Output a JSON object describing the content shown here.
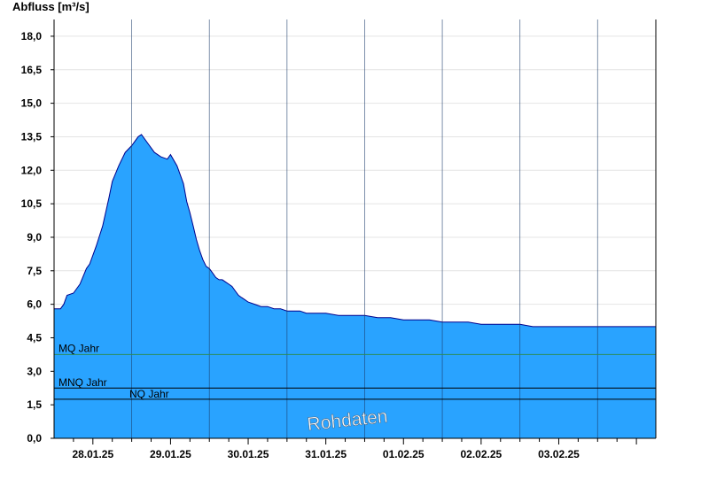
{
  "chart_data": {
    "type": "area",
    "ylabel": "Abfluss [m³/s]",
    "xlabel": "",
    "title": "",
    "ylim": [
      0,
      18.75
    ],
    "xlim": [
      "27.01.25 12:00",
      "04.02.25 06:00"
    ],
    "yticks": [
      "0,0",
      "1,5",
      "3,0",
      "4,5",
      "6,0",
      "7,5",
      "9,0",
      "10,5",
      "12,0",
      "13,5",
      "15,0",
      "16,5",
      "18,0"
    ],
    "ytick_values": [
      0,
      1.5,
      3,
      4.5,
      6,
      7.5,
      9,
      10.5,
      12,
      13.5,
      15,
      16.5,
      18
    ],
    "xticks": [
      "28.01.25",
      "29.01.25",
      "30.01.25",
      "31.01.25",
      "01.02.25",
      "02.02.25",
      "03.02.25"
    ],
    "grid": true,
    "fill_color": "#29a3ff",
    "line_color": "#00008b",
    "series": [
      {
        "name": "",
        "x_hours": [
          0,
          2,
          3,
          4,
          6,
          8,
          10,
          11,
          13,
          15,
          17,
          18,
          20,
          22,
          24,
          26,
          27,
          29,
          31,
          33,
          35,
          36,
          38,
          40,
          41,
          42,
          43,
          44,
          45,
          46,
          47,
          48,
          48.5,
          49,
          50,
          51,
          52,
          53,
          54,
          55,
          56,
          57,
          58,
          59,
          60,
          62,
          64,
          66,
          68,
          70,
          72,
          74,
          76,
          78,
          80,
          84,
          88,
          92,
          96,
          100,
          104,
          108,
          112,
          116,
          120,
          124,
          128,
          132,
          136,
          140,
          144,
          148,
          152,
          156,
          160,
          164,
          168,
          172,
          176,
          180,
          184,
          186
        ],
        "values": [
          5.8,
          5.8,
          6.0,
          6.4,
          6.5,
          6.9,
          7.6,
          7.8,
          8.6,
          9.5,
          10.8,
          11.5,
          12.2,
          12.8,
          13.1,
          13.5,
          13.6,
          13.2,
          12.8,
          12.6,
          12.5,
          12.7,
          12.2,
          11.4,
          10.6,
          10.1,
          9.5,
          8.9,
          8.4,
          8.0,
          7.7,
          7.6,
          7.5,
          7.4,
          7.2,
          7.1,
          7.1,
          7.0,
          6.9,
          6.8,
          6.6,
          6.4,
          6.3,
          6.2,
          6.1,
          6.0,
          5.9,
          5.9,
          5.8,
          5.8,
          5.7,
          5.7,
          5.7,
          5.6,
          5.6,
          5.6,
          5.5,
          5.5,
          5.5,
          5.4,
          5.4,
          5.3,
          5.3,
          5.3,
          5.2,
          5.2,
          5.2,
          5.1,
          5.1,
          5.1,
          5.1,
          5.0,
          5.0,
          5.0,
          5.0,
          5.0,
          5.0,
          5.0,
          5.0,
          5.0,
          5.0,
          5.0
        ]
      }
    ],
    "reference_lines": [
      {
        "label": "MQ Jahr",
        "value": 3.75,
        "color": "#2e8b57"
      },
      {
        "label": "MNQ Jahr",
        "value": 2.25,
        "color": "#000000"
      },
      {
        "label": "NQ Jahr",
        "value": 1.75,
        "color": "#000000"
      }
    ],
    "watermark": "Rohdaten"
  }
}
